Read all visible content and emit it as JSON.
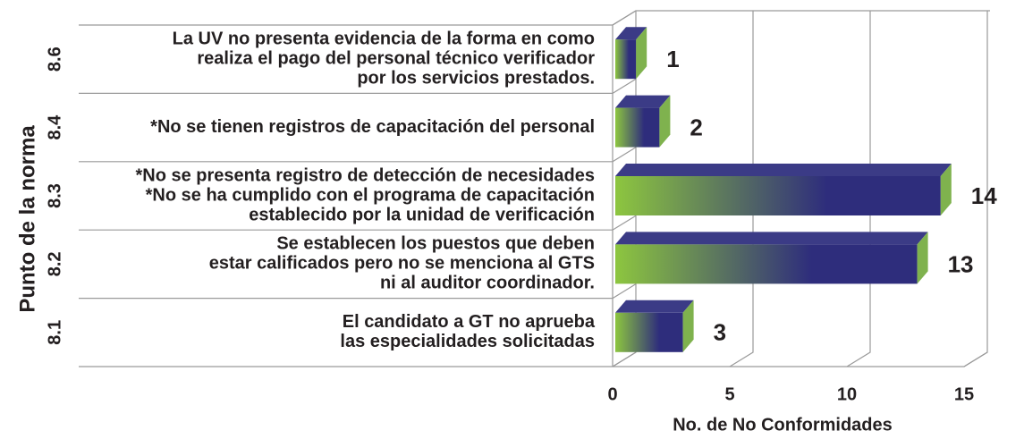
{
  "chart_data": {
    "type": "bar",
    "orientation": "horizontal",
    "y_label": "Punto de la norma",
    "x_label": "No. de No Conformidades",
    "categories": [
      "8.6",
      "8.4",
      "8.3",
      "8.2",
      "8.1"
    ],
    "descriptions": [
      [
        "La UV no presenta evidencia de la forma en como",
        "realiza el pago del personal técnico verificador",
        "por los servicios prestados."
      ],
      [
        "*No se tienen registros de capacitación del personal"
      ],
      [
        "*No se presenta registro de detección de necesidades",
        "*No se ha cumplido con el programa de capacitación",
        "establecido por la unidad de verificación"
      ],
      [
        "Se establecen los puestos que deben",
        "estar calificados  pero no se menciona al GTS",
        "ni al auditor coordinador."
      ],
      [
        "El candidato a GT no aprueba",
        "las especialidades solicitadas"
      ]
    ],
    "values": [
      1,
      2,
      14,
      13,
      3
    ],
    "colors": [
      "#8dc63f",
      "#2e2d7c"
    ],
    "xlim": [
      0,
      15
    ],
    "xticks": [
      0,
      5,
      10,
      15
    ],
    "grid": true
  }
}
